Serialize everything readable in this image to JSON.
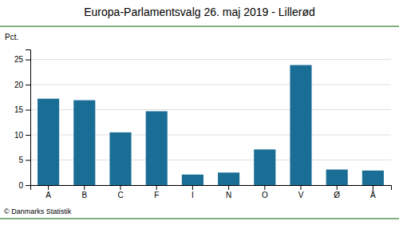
{
  "chart_data": {
    "type": "bar",
    "title": "Europa-Parlamentsvalg 26. maj 2019 - Lillerød",
    "categories": [
      "A",
      "B",
      "C",
      "F",
      "I",
      "N",
      "O",
      "V",
      "Ø",
      "Å"
    ],
    "values": [
      17.2,
      16.9,
      10.5,
      14.7,
      2.1,
      2.5,
      7.1,
      23.9,
      3.1,
      2.9
    ],
    "color": "#1a6e96",
    "ylabel": "Pct.",
    "ylim": [
      0,
      27
    ],
    "yticks": [
      0,
      5,
      10,
      15,
      20,
      25
    ],
    "grid": true,
    "annotations": [
      "© Danmarks Statistik"
    ]
  }
}
